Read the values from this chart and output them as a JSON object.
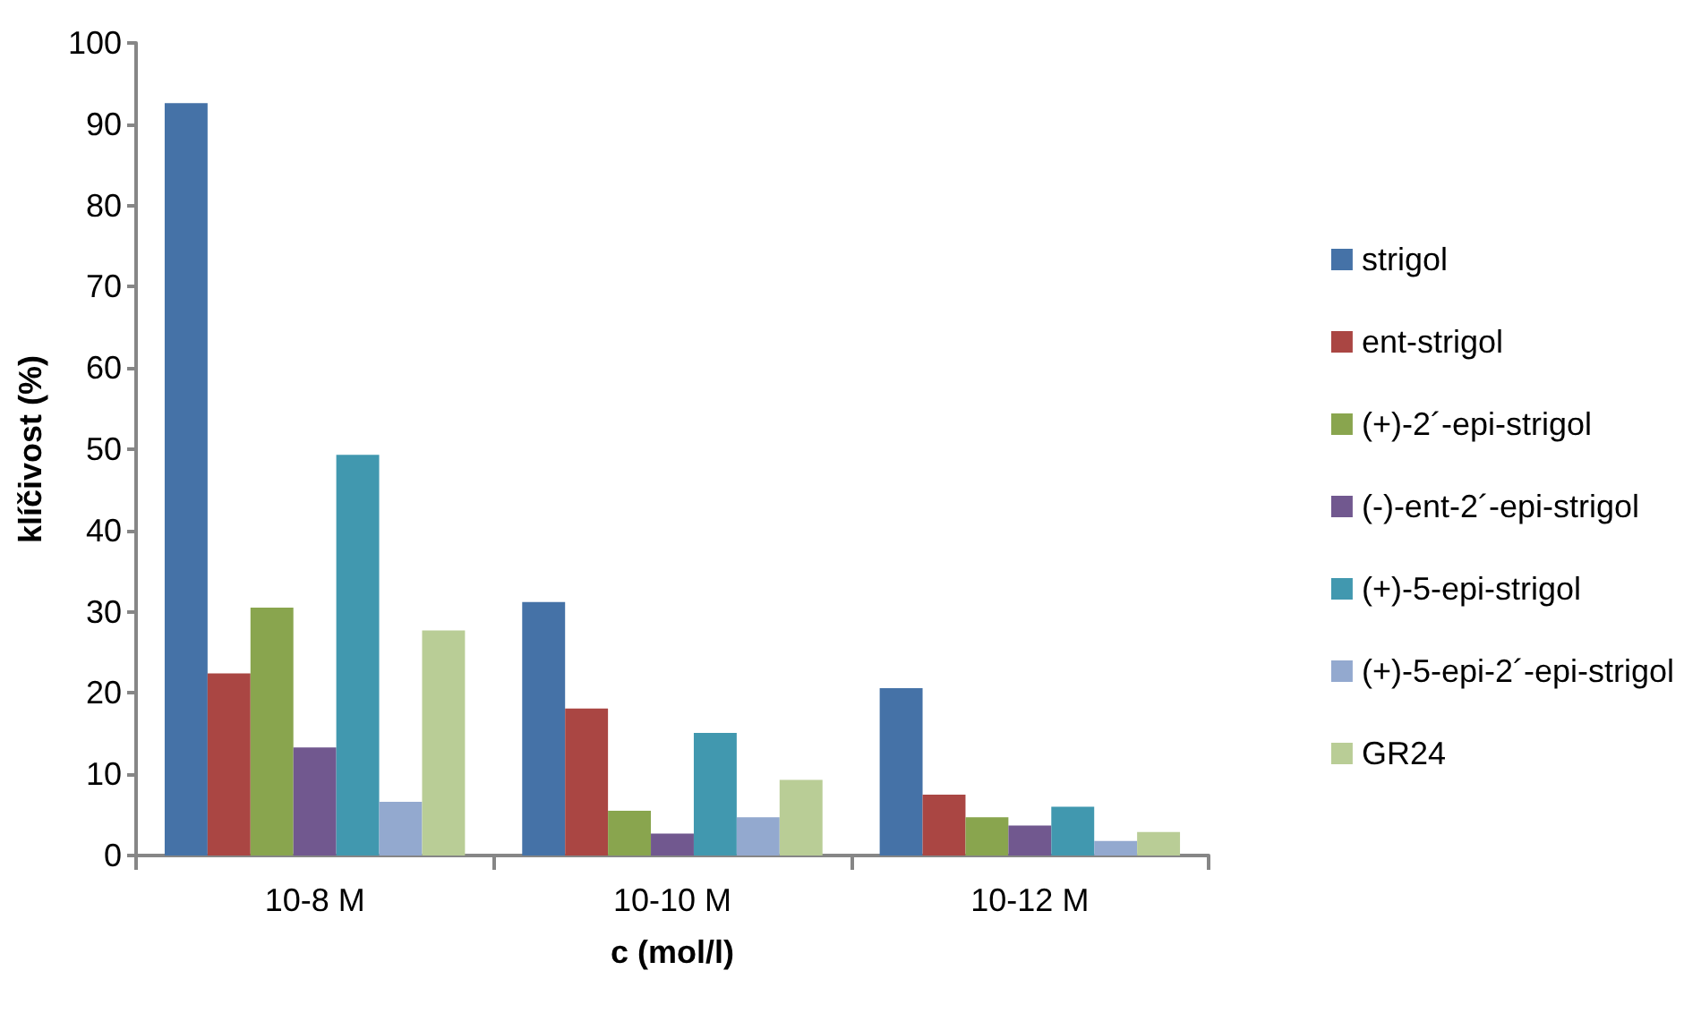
{
  "chart_data": {
    "type": "bar",
    "xlabel": "c (mol/l)",
    "ylabel": "klíčivost (%)",
    "categories": [
      "10-8 M",
      "10-10 M",
      "10-12 M"
    ],
    "series": [
      {
        "name": "strigol",
        "color": "#4572a7",
        "values": [
          92.6,
          31.2,
          20.6
        ]
      },
      {
        "name": "ent-strigol",
        "color": "#aa4643",
        "values": [
          22.4,
          18.1,
          7.5
        ]
      },
      {
        "name": "(+)-2´-epi-strigol",
        "color": "#89a54e",
        "values": [
          30.5,
          5.5,
          4.7
        ]
      },
      {
        "name": "(-)-ent-2´-epi-strigol",
        "color": "#71588f",
        "values": [
          13.3,
          2.7,
          3.7
        ]
      },
      {
        "name": "(+)-5-epi-strigol",
        "color": "#4198af",
        "values": [
          49.3,
          15.1,
          6.0
        ]
      },
      {
        "name": "(+)-5-epi-2´-epi-strigol",
        "color": "#93a9cf",
        "values": [
          6.6,
          4.7,
          1.8
        ]
      },
      {
        "name": "GR24",
        "color": "#b9cd96",
        "values": [
          27.7,
          9.3,
          2.9
        ]
      }
    ],
    "ylim": [
      0,
      100
    ],
    "yticks": [
      0,
      10,
      20,
      30,
      40,
      50,
      60,
      70,
      80,
      90,
      100
    ],
    "grid": false,
    "legend": "right"
  }
}
